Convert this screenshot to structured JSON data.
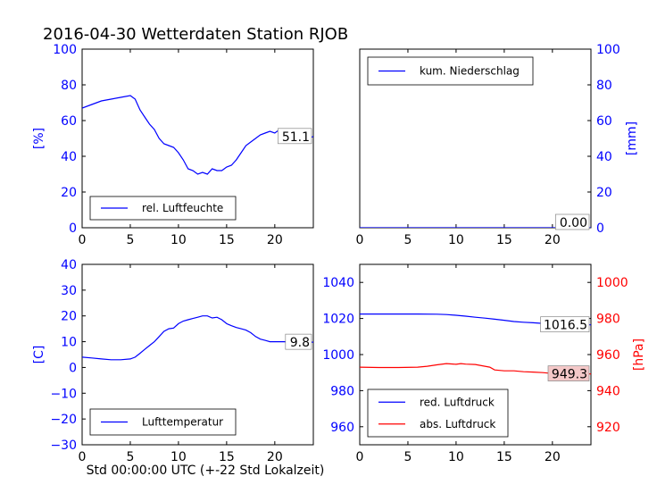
{
  "figure": {
    "title": "2016-04-30 Wetterdaten Station RJOB",
    "xlabel": "Std 00:00:00 UTC (+-22 Std Lokalzeit)"
  },
  "colors": {
    "blue": "#0000ff",
    "red": "#ff0000",
    "black": "#000000"
  },
  "chart_data": [
    {
      "id": "humidity",
      "type": "line",
      "title": "",
      "xlabel": "",
      "ylabel": "[%]",
      "xlim": [
        0,
        24
      ],
      "ylim": [
        0,
        100
      ],
      "xticks": [
        "0",
        "5",
        "10",
        "15",
        "20"
      ],
      "yticks": [
        "0",
        "20",
        "40",
        "60",
        "80",
        "100"
      ],
      "legend": "bottom-left",
      "series": [
        {
          "name": "rel. Luftfeuchte",
          "color": "#0000ff",
          "x": [
            0,
            1,
            2,
            3,
            4,
            5,
            5.5,
            6,
            6.5,
            7,
            7.5,
            8,
            8.5,
            9,
            9.5,
            10,
            10.5,
            11,
            11.5,
            12,
            12.5,
            13,
            13.5,
            14,
            14.5,
            15,
            15.5,
            16,
            16.5,
            17,
            17.5,
            18,
            18.5,
            19,
            19.5,
            20,
            20.5,
            21,
            21.5,
            22,
            22.5,
            23,
            23.5,
            24
          ],
          "y": [
            67,
            69,
            71,
            72,
            73,
            74,
            72,
            66,
            62,
            58,
            55,
            50,
            47,
            46,
            45,
            42,
            38,
            33,
            32,
            30,
            31,
            30,
            33,
            32,
            32,
            34,
            35,
            38,
            42,
            46,
            48,
            50,
            52,
            53,
            54,
            53,
            55,
            53,
            51,
            50,
            52,
            48,
            50,
            51.1
          ]
        }
      ],
      "value_label": "51.1"
    },
    {
      "id": "precip",
      "type": "line",
      "title": "",
      "xlabel": "",
      "ylabel": "[mm]",
      "ylabel_position": "right",
      "xlim": [
        0,
        24
      ],
      "ylim": [
        0,
        100
      ],
      "xticks": [
        "0",
        "5",
        "10",
        "15",
        "20"
      ],
      "yticks": [
        "0",
        "20",
        "40",
        "60",
        "80",
        "100"
      ],
      "legend": "top-left",
      "series": [
        {
          "name": "kum. Niederschlag",
          "color": "#0000ff",
          "x": [
            0,
            24
          ],
          "y": [
            0,
            0
          ]
        }
      ],
      "value_label": "0.00"
    },
    {
      "id": "temperature",
      "type": "line",
      "title": "",
      "xlabel": "",
      "ylabel": "[C]",
      "xlim": [
        0,
        24
      ],
      "ylim": [
        -30,
        40
      ],
      "xticks": [
        "0",
        "5",
        "10",
        "15",
        "20"
      ],
      "yticks": [
        "−30",
        "−20",
        "−10",
        "0",
        "10",
        "20",
        "30",
        "40"
      ],
      "legend": "bottom-left",
      "series": [
        {
          "name": "Lufttemperatur",
          "color": "#0000ff",
          "x": [
            0,
            1,
            2,
            3,
            4,
            5,
            5.5,
            6,
            6.5,
            7,
            7.5,
            8,
            8.5,
            9,
            9.5,
            10,
            10.5,
            11,
            11.5,
            12,
            12.5,
            13,
            13.5,
            14,
            14.5,
            15,
            15.5,
            16,
            16.5,
            17,
            17.5,
            18,
            18.5,
            19,
            19.5,
            20,
            21,
            22,
            23,
            24
          ],
          "y": [
            4,
            3.7,
            3.3,
            3,
            3,
            3.3,
            4,
            5.5,
            7,
            8.5,
            10,
            12,
            14,
            15,
            15.3,
            17,
            18,
            18.5,
            19,
            19.5,
            20,
            20,
            19.2,
            19.5,
            18.5,
            17,
            16.2,
            15.5,
            15,
            14.5,
            13.5,
            12,
            11,
            10.5,
            10,
            10,
            10,
            9.8,
            9.8,
            9.8
          ]
        }
      ],
      "value_label": "9.8"
    },
    {
      "id": "pressure",
      "type": "line",
      "title": "",
      "xlabel": "",
      "ylabel": "",
      "ylabel_right": "[hPa]",
      "xlim": [
        0,
        24
      ],
      "ylim": [
        950,
        1050
      ],
      "ylim_right": [
        910,
        1010
      ],
      "xticks": [
        "0",
        "5",
        "10",
        "15",
        "20"
      ],
      "yticks": [
        "960",
        "980",
        "1000",
        "1020",
        "1040"
      ],
      "yticks_right": [
        "920",
        "940",
        "960",
        "980",
        "1000"
      ],
      "legend": "bottom-left",
      "series": [
        {
          "name": "red. Luftdruck",
          "color": "#0000ff",
          "axis": "left",
          "x": [
            0,
            2,
            4,
            6,
            8,
            9,
            10,
            11,
            12,
            13,
            14,
            15,
            16,
            17,
            18,
            19,
            20,
            21,
            22,
            23,
            24
          ],
          "y": [
            1022.5,
            1022.5,
            1022.5,
            1022.5,
            1022.4,
            1022.2,
            1021.8,
            1021.3,
            1020.7,
            1020.2,
            1019.6,
            1019,
            1018.3,
            1017.9,
            1017.6,
            1017.3,
            1017,
            1016.8,
            1016.6,
            1016.5,
            1016.5
          ]
        },
        {
          "name": "abs. Luftdruck",
          "color": "#ff0000",
          "axis": "right",
          "x": [
            0,
            2,
            4,
            6,
            7,
            8,
            9,
            9.5,
            10,
            10.5,
            11,
            12,
            13,
            13.5,
            14,
            15,
            16,
            17,
            18,
            19,
            20,
            21,
            22,
            23,
            24
          ],
          "y": [
            953,
            952.8,
            952.8,
            953,
            953.5,
            954.3,
            955,
            954.8,
            954.6,
            955,
            954.7,
            954.5,
            953.5,
            953,
            951.5,
            951,
            951,
            950.5,
            950.3,
            950,
            949.5,
            949.3,
            949.3,
            949.2,
            949.3
          ]
        }
      ],
      "value_labels": [
        "1016.5",
        "949.3"
      ]
    }
  ]
}
